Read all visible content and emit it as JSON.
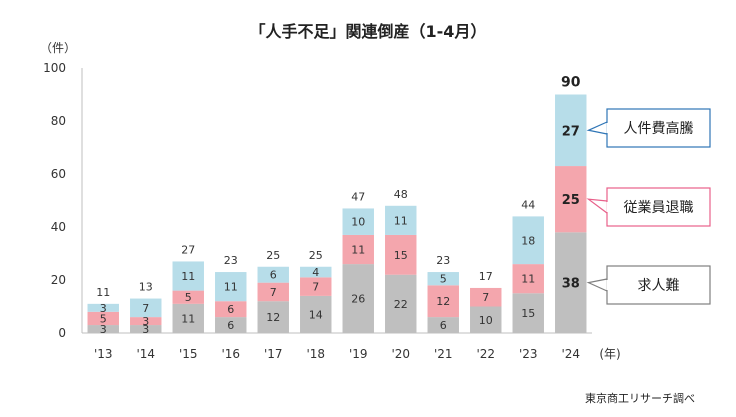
{
  "chart_data": {
    "type": "bar",
    "stacked": true,
    "title": "「人手不足」関連倒産（1-4月）",
    "ylabel": "（件）",
    "xlabel": "(年)",
    "ylim": [
      0,
      100
    ],
    "yticks": [
      0,
      20,
      40,
      60,
      80,
      100
    ],
    "categories": [
      "'13",
      "'14",
      "'15",
      "'16",
      "'17",
      "'18",
      "'19",
      "'20",
      "'21",
      "'22",
      "'23",
      "'24"
    ],
    "series": [
      {
        "name": "求人難",
        "color": "#bfbfbf",
        "values": [
          3,
          3,
          11,
          6,
          12,
          14,
          26,
          22,
          6,
          10,
          15,
          38
        ]
      },
      {
        "name": "従業員退職",
        "color": "#f4a6ad",
        "values": [
          5,
          3,
          5,
          6,
          7,
          7,
          11,
          15,
          12,
          7,
          11,
          25
        ]
      },
      {
        "name": "人件費高騰",
        "color": "#b7dde9",
        "values": [
          3,
          7,
          11,
          11,
          6,
          4,
          10,
          11,
          5,
          0,
          18,
          27
        ]
      }
    ],
    "totals": [
      11,
      13,
      27,
      23,
      25,
      25,
      47,
      48,
      23,
      17,
      44,
      90
    ],
    "grid": false,
    "legend": "callouts-right"
  },
  "callouts": [
    {
      "label": "人件費高騰",
      "border": "#2e75b6"
    },
    {
      "label": "従業員退職",
      "border": "#e8608a"
    },
    {
      "label": "求人難",
      "border": "#7f7f7f"
    }
  ],
  "source": "東京商工リサーチ調べ"
}
